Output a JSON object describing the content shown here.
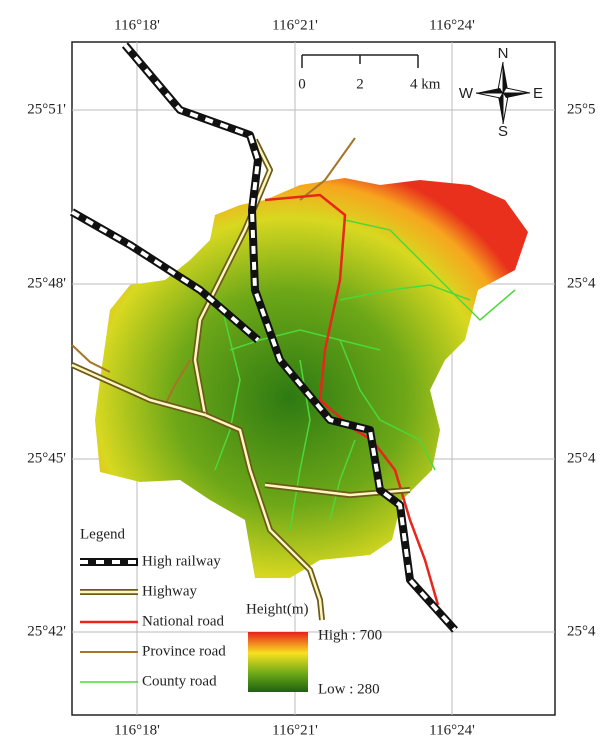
{
  "axes": {
    "top": [
      "116°18'",
      "116°21'",
      "116°24'"
    ],
    "bottom": [
      "116°18'",
      "116°21'",
      "116°24'"
    ],
    "left": [
      "25°51'",
      "25°48'",
      "25°45'",
      "25°42'"
    ],
    "right": [
      "25°5",
      "25°4",
      "25°4",
      "25°4"
    ]
  },
  "scale_bar": {
    "labels": [
      "0",
      "2",
      "4 km"
    ]
  },
  "compass": {
    "north": "N",
    "west": "W",
    "east": "E",
    "south": "S"
  },
  "legend": {
    "title": "Legend",
    "items": [
      "High railway",
      "Highway",
      "National road",
      "Province road",
      "County road"
    ]
  },
  "height_legend": {
    "title": "Height(m)",
    "high": "High : 700",
    "low": "Low : 280"
  }
}
